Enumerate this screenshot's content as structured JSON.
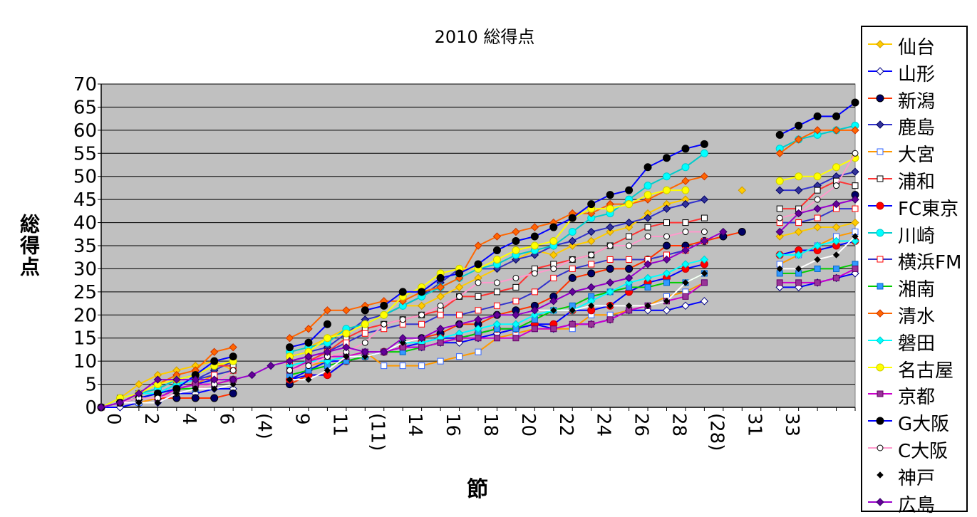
{
  "chart_data": {
    "type": "line",
    "title": "2010 総得点",
    "xlabel": "節",
    "ylabel": "総得点",
    "ylim": [
      0,
      70
    ],
    "yticks": [
      0,
      5,
      10,
      15,
      20,
      25,
      30,
      35,
      40,
      45,
      50,
      55,
      60,
      65,
      70
    ],
    "x_tick_labels": [
      "0",
      "2",
      "4",
      "6",
      "(4)",
      "9",
      "11",
      "(11)",
      "14",
      "16",
      "18",
      "20",
      "22",
      "24",
      "26",
      "28",
      "(28)",
      "31",
      "33"
    ],
    "grid": true,
    "legend_position": "right",
    "series": [
      {
        "name": "仙台",
        "color": "#FFCC00",
        "marker": "diamond-filled",
        "values": [
          0,
          2,
          5,
          7,
          8,
          9,
          10,
          8,
          null,
          null,
          12,
          13,
          15,
          17,
          18,
          20,
          22,
          22,
          24,
          26,
          28,
          30,
          32,
          34,
          33,
          35,
          36,
          38,
          39,
          42,
          44,
          45,
          null,
          null,
          47,
          null,
          37,
          38,
          39,
          39,
          40
        ]
      },
      {
        "name": "山形",
        "color": "#0000FF",
        "marker": "diamond-open",
        "values": [
          0,
          0,
          1,
          1,
          3,
          3,
          4,
          4,
          null,
          null,
          6,
          8,
          10,
          10,
          11,
          12,
          13,
          13,
          14,
          14,
          15,
          16,
          17,
          18,
          17,
          18,
          18,
          19,
          21,
          21,
          21,
          22,
          23,
          null,
          null,
          null,
          26,
          26,
          27,
          28,
          29
        ]
      },
      {
        "name": "新潟",
        "color": "#FF3300",
        "marker": "circle-filled-navy",
        "values": [
          0,
          1,
          1,
          2,
          2,
          2,
          2,
          3,
          null,
          null,
          5,
          7,
          7,
          10,
          11,
          12,
          14,
          15,
          16,
          18,
          18,
          20,
          21,
          22,
          24,
          28,
          29,
          30,
          30,
          32,
          35,
          35,
          36,
          37,
          38,
          null,
          null,
          null,
          null,
          null,
          46
        ]
      },
      {
        "name": "鹿島",
        "color": "#3333CC",
        "marker": "diamond-navy",
        "values": [
          0,
          1,
          2,
          3,
          5,
          6,
          8,
          10,
          null,
          null,
          11,
          12,
          13,
          16,
          19,
          20,
          22,
          24,
          27,
          30,
          30,
          30,
          32,
          33,
          35,
          36,
          38,
          39,
          40,
          41,
          43,
          44,
          45,
          null,
          null,
          null,
          47,
          47,
          48,
          50,
          51
        ]
      },
      {
        "name": "大宮",
        "color": "#FF9900",
        "marker": "square-open-blue",
        "values": [
          0,
          1,
          1,
          2,
          4,
          5,
          7,
          8,
          null,
          null,
          8,
          9,
          10,
          11,
          12,
          9,
          9,
          9,
          10,
          11,
          12,
          15,
          16,
          17,
          17,
          17,
          20,
          20,
          21,
          22,
          24,
          25,
          27,
          null,
          null,
          null,
          31,
          33,
          35,
          37,
          38
        ]
      },
      {
        "name": "浦和",
        "color": "#FF3333",
        "marker": "square-open-black",
        "values": [
          0,
          2,
          3,
          4,
          6,
          7,
          9,
          9,
          null,
          null,
          9,
          10,
          12,
          15,
          17,
          18,
          19,
          20,
          21,
          24,
          24,
          25,
          26,
          30,
          31,
          32,
          33,
          35,
          37,
          39,
          40,
          40,
          41,
          null,
          null,
          null,
          43,
          43,
          47,
          49,
          48
        ]
      },
      {
        "name": "FC東京",
        "color": "#0000FF",
        "marker": "circle-red",
        "values": [
          0,
          1,
          2,
          2,
          4,
          5,
          6,
          6,
          null,
          null,
          6,
          7,
          7,
          10,
          11,
          12,
          13,
          14,
          15,
          15,
          16,
          17,
          17,
          18,
          18,
          21,
          21,
          22,
          25,
          27,
          28,
          30,
          31,
          null,
          null,
          null,
          33,
          34,
          34,
          35,
          36
        ]
      },
      {
        "name": "川崎",
        "color": "#00CCCC",
        "marker": "circle-cyan",
        "values": [
          0,
          1,
          3,
          4,
          6,
          7,
          9,
          10,
          null,
          null,
          12,
          13,
          14,
          17,
          18,
          20,
          22,
          24,
          26,
          28,
          30,
          31,
          33,
          34,
          35,
          38,
          41,
          42,
          45,
          48,
          50,
          52,
          55,
          null,
          null,
          null,
          56,
          58,
          59,
          60,
          61
        ]
      },
      {
        "name": "横浜FM",
        "color": "#3333CC",
        "marker": "square-open-red",
        "values": [
          0,
          1,
          2,
          3,
          5,
          6,
          7,
          8,
          null,
          null,
          10,
          11,
          12,
          14,
          16,
          17,
          18,
          18,
          20,
          20,
          21,
          22,
          23,
          25,
          28,
          30,
          31,
          32,
          32,
          32,
          33,
          34,
          36,
          null,
          null,
          null,
          40,
          40,
          41,
          43,
          43
        ]
      },
      {
        "name": "湘南",
        "color": "#00CC00",
        "marker": "square-blue",
        "values": [
          0,
          1,
          2,
          3,
          4,
          4,
          5,
          6,
          null,
          null,
          7,
          8,
          9,
          10,
          11,
          12,
          12,
          13,
          14,
          15,
          16,
          17,
          17,
          19,
          21,
          22,
          24,
          25,
          26,
          26,
          27,
          27,
          29,
          null,
          null,
          null,
          29,
          29,
          30,
          30,
          31
        ]
      },
      {
        "name": "清水",
        "color": "#FF6600",
        "marker": "diamond-orange",
        "values": [
          0,
          1,
          3,
          5,
          7,
          8,
          12,
          13,
          null,
          null,
          15,
          17,
          21,
          21,
          22,
          23,
          23,
          25,
          26,
          28,
          35,
          37,
          38,
          39,
          40,
          42,
          42,
          44,
          44,
          45,
          47,
          49,
          50,
          null,
          null,
          null,
          55,
          58,
          60,
          60,
          60
        ]
      },
      {
        "name": "磐田",
        "color": "#00FFFF",
        "marker": "diamond-cyan",
        "values": [
          0,
          2,
          3,
          3,
          5,
          6,
          6,
          6,
          null,
          null,
          9,
          10,
          10,
          11,
          11,
          12,
          14,
          14,
          15,
          16,
          17,
          18,
          18,
          20,
          21,
          21,
          23,
          25,
          27,
          28,
          29,
          31,
          32,
          null,
          null,
          null,
          33,
          33,
          35,
          36,
          36
        ]
      },
      {
        "name": "名古屋",
        "color": "#FFFF00",
        "marker": "circle-yellow",
        "values": [
          0,
          2,
          3,
          5,
          6,
          7,
          9,
          10,
          null,
          null,
          11,
          12,
          15,
          16,
          18,
          20,
          24,
          26,
          29,
          30,
          30,
          32,
          34,
          35,
          36,
          41,
          43,
          43,
          44,
          46,
          47,
          47,
          null,
          null,
          null,
          null,
          49,
          50,
          50,
          52,
          54
        ]
      },
      {
        "name": "京都",
        "color": "#CC00CC",
        "marker": "square-purple",
        "values": [
          0,
          1,
          2,
          2,
          4,
          5,
          5,
          6,
          null,
          null,
          8,
          10,
          11,
          11,
          12,
          12,
          13,
          13,
          14,
          15,
          15,
          15,
          15,
          17,
          17,
          18,
          18,
          19,
          21,
          22,
          23,
          24,
          27,
          null,
          null,
          null,
          27,
          27,
          27,
          28,
          30
        ]
      },
      {
        "name": "G大阪",
        "color": "#0000FF",
        "marker": "circle-black",
        "values": [
          0,
          1,
          2,
          3,
          4,
          7,
          10,
          11,
          null,
          null,
          13,
          14,
          18,
          null,
          21,
          22,
          25,
          25,
          28,
          29,
          31,
          34,
          36,
          37,
          39,
          41,
          44,
          46,
          47,
          52,
          54,
          56,
          57,
          null,
          null,
          null,
          59,
          61,
          63,
          63,
          66
        ]
      },
      {
        "name": "C大阪",
        "color": "#FF99CC",
        "marker": "circle-open",
        "values": [
          0,
          1,
          2,
          2,
          3,
          4,
          5,
          8,
          null,
          null,
          8,
          9,
          11,
          12,
          14,
          18,
          19,
          20,
          22,
          24,
          27,
          27,
          28,
          29,
          30,
          32,
          33,
          35,
          35,
          37,
          37,
          38,
          38,
          null,
          null,
          null,
          41,
          42,
          45,
          48,
          55
        ]
      },
      {
        "name": "神戸",
        "color": "#FFFFFF",
        "marker": "diamond-small-black",
        "values": [
          0,
          1,
          1,
          1,
          3,
          4,
          4,
          5,
          null,
          null,
          6,
          6,
          8,
          11,
          11,
          12,
          14,
          15,
          17,
          18,
          19,
          20,
          20,
          21,
          21,
          21,
          22,
          22,
          22,
          22,
          23,
          27,
          29,
          null,
          null,
          null,
          30,
          30,
          32,
          33,
          37
        ]
      },
      {
        "name": "広島",
        "color": "#9900CC",
        "marker": "diamond-purple",
        "values": [
          0,
          1,
          3,
          6,
          6,
          6,
          6,
          6,
          7,
          9,
          10,
          11,
          12,
          13,
          12,
          12,
          15,
          15,
          17,
          18,
          19,
          20,
          20,
          21,
          23,
          25,
          26,
          27,
          28,
          31,
          32,
          34,
          36,
          38,
          null,
          null,
          38,
          42,
          43,
          44,
          45
        ]
      }
    ]
  }
}
